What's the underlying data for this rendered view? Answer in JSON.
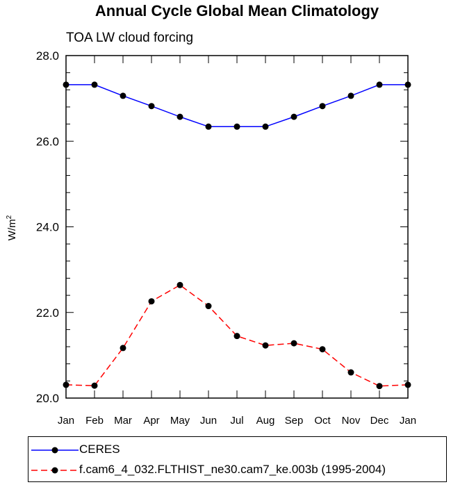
{
  "chart_data": {
    "type": "line",
    "title": "Annual Cycle Global Mean Climatology",
    "subtitle": "TOA LW cloud forcing",
    "ylabel_base": "W/m",
    "ylabel_sup": "2",
    "ylim": [
      20.0,
      28.0
    ],
    "yticks": [
      "20.0",
      "22.0",
      "24.0",
      "26.0",
      "28.0"
    ],
    "ytick_values": [
      20.0,
      22.0,
      24.0,
      26.0,
      28.0
    ],
    "categories": [
      "Jan",
      "Feb",
      "Mar",
      "Apr",
      "May",
      "Jun",
      "Jul",
      "Aug",
      "Sep",
      "Oct",
      "Nov",
      "Dec",
      "Jan"
    ],
    "legend_position": "bottom",
    "series": [
      {
        "name": "CERES",
        "color": "#0000ff",
        "dash": "solid",
        "values": [
          27.32,
          27.32,
          27.06,
          26.82,
          26.57,
          26.34,
          26.34,
          26.34,
          26.57,
          26.82,
          27.06,
          27.32,
          27.32
        ]
      },
      {
        "name": "f.cam6_4_032.FLTHIST_ne30.cam7_ke.003b (1995-2004)",
        "color": "#ff0000",
        "dash": "dashed",
        "values": [
          20.31,
          20.29,
          21.17,
          22.26,
          22.64,
          22.15,
          21.45,
          21.23,
          21.28,
          21.14,
          20.6,
          20.28,
          20.31
        ]
      }
    ]
  }
}
